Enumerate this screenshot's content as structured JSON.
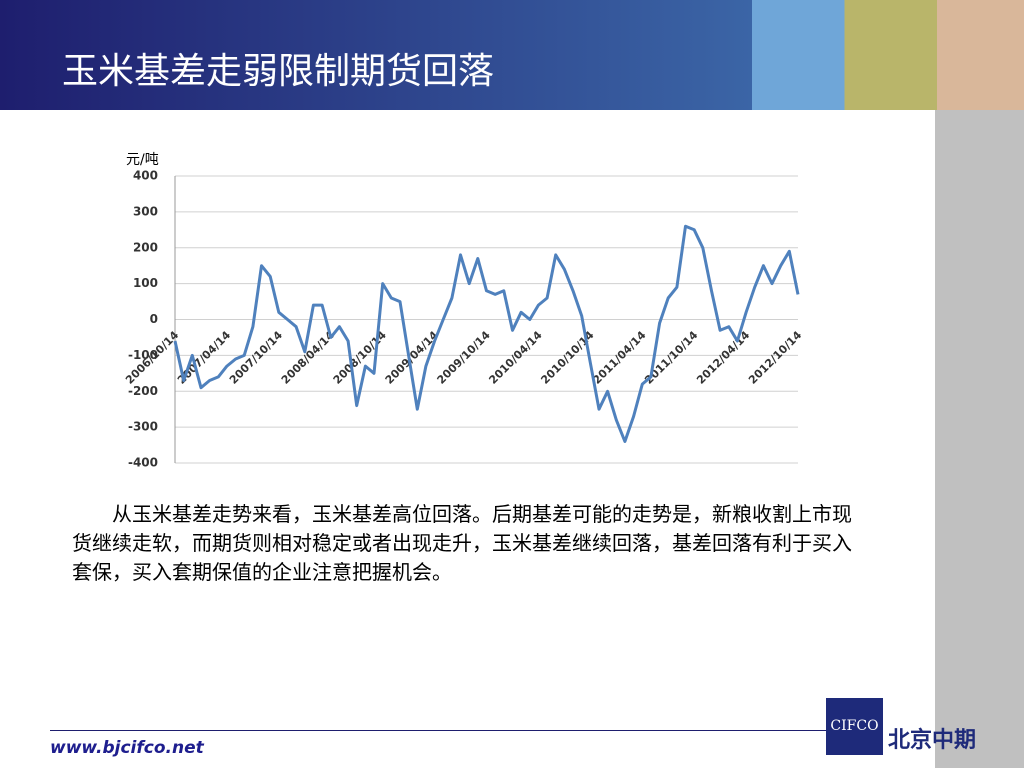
{
  "slide": {
    "title": "玉米基差走弱限制期货回落",
    "body": "从玉米基差走势来看，玉米基差高位回落。后期基差可能的走势是，新粮收割上市现货继续走软，而期货则相对稳定或者出现走升，玉米基差继续回落，基差回落有利于买入套保，买入套期保值的企业注意把握机会。",
    "url": "www.bjcifco.net",
    "logo": "CIFCO",
    "brand": "北京中期"
  },
  "chart_data": {
    "type": "line",
    "y_label": "元/吨",
    "categories": [
      "2006/10/14",
      null,
      null,
      null,
      null,
      null,
      "2007/04/14",
      null,
      null,
      null,
      null,
      null,
      "2007/10/14",
      null,
      null,
      null,
      null,
      null,
      "2008/04/14",
      null,
      null,
      null,
      null,
      null,
      "2008/10/14",
      null,
      null,
      null,
      null,
      null,
      "2009/04/14",
      null,
      null,
      null,
      null,
      null,
      "2009/10/14",
      null,
      null,
      null,
      null,
      null,
      "2010/04/14",
      null,
      null,
      null,
      null,
      null,
      "2010/10/14",
      null,
      null,
      null,
      null,
      null,
      "2011/04/14",
      null,
      null,
      null,
      null,
      null,
      "2011/10/14",
      null,
      null,
      null,
      null,
      null,
      "2012/04/14",
      null,
      null,
      null,
      null,
      null,
      "2012/10/14"
    ],
    "series": [
      {
        "color": "#4f81bd",
        "values": [
          -60,
          -170,
          -100,
          -190,
          -170,
          -160,
          -130,
          -110,
          -100,
          -20,
          150,
          120,
          20,
          0,
          -20,
          -90,
          40,
          40,
          -50,
          -20,
          -60,
          -240,
          -130,
          -150,
          100,
          60,
          50,
          -100,
          -250,
          -130,
          -60,
          0,
          60,
          180,
          100,
          170,
          80,
          70,
          80,
          -30,
          20,
          0,
          40,
          60,
          180,
          140,
          80,
          10,
          -120,
          -250,
          -200,
          -280,
          -340,
          -270,
          -180,
          -160,
          -10,
          60,
          90,
          260,
          250,
          200,
          80,
          -30,
          -20,
          -60,
          20,
          90,
          150,
          100,
          150,
          190,
          70
        ]
      }
    ],
    "ylim": [
      -400,
      400
    ],
    "yticks": [
      -400,
      -300,
      -200,
      -100,
      0,
      100,
      200,
      300,
      400
    ],
    "grid": true
  }
}
